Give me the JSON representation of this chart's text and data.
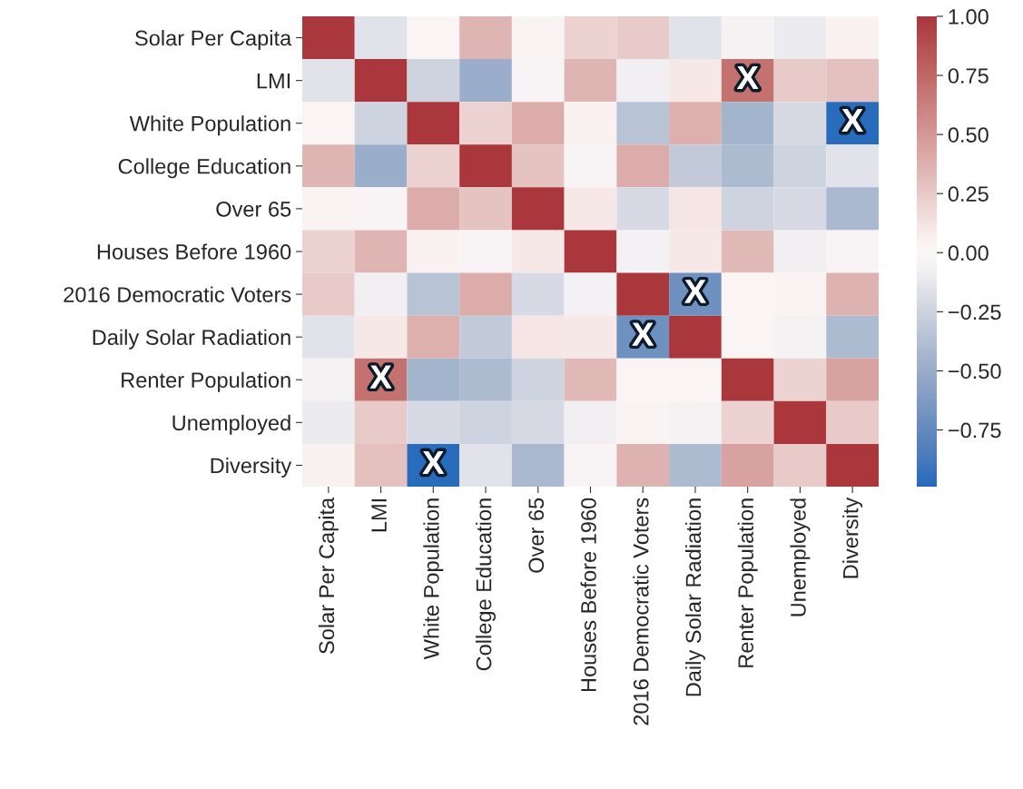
{
  "chart_data": {
    "type": "heatmap",
    "categories": [
      "Solar Per Capita",
      "LMI",
      "White Population",
      "College Education",
      "Over 65",
      "Houses Before 1960",
      "2016 Democratic Voters",
      "Daily Solar Radiation",
      "Renter Population",
      "Unemployed",
      "Diversity"
    ],
    "y_categories": [
      "Solar Per Capita",
      "LMI",
      "White Population",
      "College Education",
      "Over 65",
      "Houses Before 1960",
      "2016 Democratic Voters",
      "Daily Solar Radiation",
      "Renter Population",
      "Unemployed",
      "Diversity"
    ],
    "cells": [
      [
        1,
        -0.15,
        0.02,
        0.35,
        0.03,
        0.2,
        0.25,
        -0.15,
        -0.05,
        -0.1,
        0.05
      ],
      [
        -0.15,
        1,
        -0.25,
        -0.5,
        -0.03,
        0.35,
        -0.08,
        0.1,
        0.7,
        0.25,
        0.3
      ],
      [
        0.02,
        -0.25,
        1,
        0.2,
        0.4,
        0.05,
        -0.35,
        0.38,
        -0.45,
        -0.2,
        -0.97
      ],
      [
        0.35,
        -0.5,
        0.2,
        1,
        0.28,
        -0.03,
        0.4,
        -0.3,
        -0.4,
        -0.25,
        -0.15
      ],
      [
        0.03,
        -0.03,
        0.4,
        0.28,
        1,
        0.1,
        -0.2,
        0.12,
        -0.25,
        -0.2,
        -0.42
      ],
      [
        0.2,
        0.35,
        0.05,
        -0.03,
        0.1,
        1,
        -0.06,
        0.1,
        0.33,
        -0.08,
        -0.03
      ],
      [
        0.25,
        -0.08,
        -0.35,
        0.4,
        -0.2,
        -0.06,
        1,
        -0.7,
        0.01,
        0.03,
        0.37
      ],
      [
        -0.15,
        0.1,
        0.38,
        -0.3,
        0.12,
        0.1,
        -0.7,
        1,
        0.02,
        -0.05,
        -0.4
      ],
      [
        -0.05,
        0.7,
        -0.45,
        -0.4,
        -0.25,
        0.33,
        0.01,
        0.02,
        1,
        0.2,
        0.45
      ],
      [
        -0.1,
        0.25,
        -0.2,
        -0.25,
        -0.2,
        -0.08,
        0.03,
        -0.05,
        0.2,
        1,
        0.25
      ],
      [
        0.05,
        0.3,
        -0.97,
        -0.15,
        -0.42,
        -0.03,
        0.37,
        -0.4,
        0.45,
        0.25,
        1
      ]
    ],
    "clim": [
      -0.99,
      1.0
    ],
    "cticks": [
      {
        "value": 1.0,
        "label": "1.00"
      },
      {
        "value": 0.75,
        "label": "0.75"
      },
      {
        "value": 0.5,
        "label": "0.50"
      },
      {
        "value": 0.25,
        "label": "0.25"
      },
      {
        "value": 0.0,
        "label": "0.00"
      },
      {
        "value": -0.25,
        "label": "−0.25"
      },
      {
        "value": -0.5,
        "label": "−0.50"
      },
      {
        "value": -0.75,
        "label": "−0.75"
      }
    ],
    "annotations": [
      "X",
      "X",
      "X",
      "X",
      "X",
      "X"
    ]
  }
}
